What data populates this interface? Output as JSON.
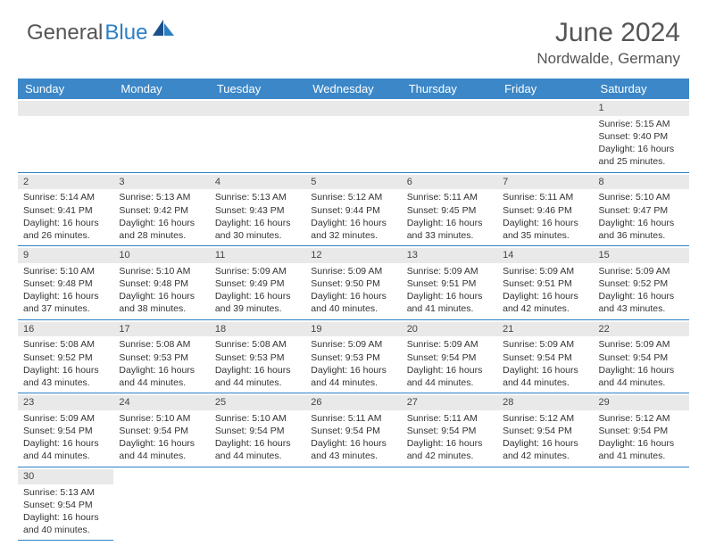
{
  "brand": {
    "word1": "General",
    "word2": "Blue"
  },
  "title": "June 2024",
  "location": "Nordwalde, Germany",
  "colors": {
    "header_bg": "#3b87c8",
    "header_text": "#ffffff",
    "rule": "#2d7fc4",
    "daynum_bg": "#e9e9e9",
    "text": "#333333",
    "brand_grey": "#555555",
    "brand_blue": "#2d7fc4"
  },
  "weekdays": [
    "Sunday",
    "Monday",
    "Tuesday",
    "Wednesday",
    "Thursday",
    "Friday",
    "Saturday"
  ],
  "first_weekday_index": 6,
  "days": [
    {
      "n": 1,
      "sunrise": "5:15 AM",
      "sunset": "9:40 PM",
      "daylight": "16 hours and 25 minutes."
    },
    {
      "n": 2,
      "sunrise": "5:14 AM",
      "sunset": "9:41 PM",
      "daylight": "16 hours and 26 minutes."
    },
    {
      "n": 3,
      "sunrise": "5:13 AM",
      "sunset": "9:42 PM",
      "daylight": "16 hours and 28 minutes."
    },
    {
      "n": 4,
      "sunrise": "5:13 AM",
      "sunset": "9:43 PM",
      "daylight": "16 hours and 30 minutes."
    },
    {
      "n": 5,
      "sunrise": "5:12 AM",
      "sunset": "9:44 PM",
      "daylight": "16 hours and 32 minutes."
    },
    {
      "n": 6,
      "sunrise": "5:11 AM",
      "sunset": "9:45 PM",
      "daylight": "16 hours and 33 minutes."
    },
    {
      "n": 7,
      "sunrise": "5:11 AM",
      "sunset": "9:46 PM",
      "daylight": "16 hours and 35 minutes."
    },
    {
      "n": 8,
      "sunrise": "5:10 AM",
      "sunset": "9:47 PM",
      "daylight": "16 hours and 36 minutes."
    },
    {
      "n": 9,
      "sunrise": "5:10 AM",
      "sunset": "9:48 PM",
      "daylight": "16 hours and 37 minutes."
    },
    {
      "n": 10,
      "sunrise": "5:10 AM",
      "sunset": "9:48 PM",
      "daylight": "16 hours and 38 minutes."
    },
    {
      "n": 11,
      "sunrise": "5:09 AM",
      "sunset": "9:49 PM",
      "daylight": "16 hours and 39 minutes."
    },
    {
      "n": 12,
      "sunrise": "5:09 AM",
      "sunset": "9:50 PM",
      "daylight": "16 hours and 40 minutes."
    },
    {
      "n": 13,
      "sunrise": "5:09 AM",
      "sunset": "9:51 PM",
      "daylight": "16 hours and 41 minutes."
    },
    {
      "n": 14,
      "sunrise": "5:09 AM",
      "sunset": "9:51 PM",
      "daylight": "16 hours and 42 minutes."
    },
    {
      "n": 15,
      "sunrise": "5:09 AM",
      "sunset": "9:52 PM",
      "daylight": "16 hours and 43 minutes."
    },
    {
      "n": 16,
      "sunrise": "5:08 AM",
      "sunset": "9:52 PM",
      "daylight": "16 hours and 43 minutes."
    },
    {
      "n": 17,
      "sunrise": "5:08 AM",
      "sunset": "9:53 PM",
      "daylight": "16 hours and 44 minutes."
    },
    {
      "n": 18,
      "sunrise": "5:08 AM",
      "sunset": "9:53 PM",
      "daylight": "16 hours and 44 minutes."
    },
    {
      "n": 19,
      "sunrise": "5:09 AM",
      "sunset": "9:53 PM",
      "daylight": "16 hours and 44 minutes."
    },
    {
      "n": 20,
      "sunrise": "5:09 AM",
      "sunset": "9:54 PM",
      "daylight": "16 hours and 44 minutes."
    },
    {
      "n": 21,
      "sunrise": "5:09 AM",
      "sunset": "9:54 PM",
      "daylight": "16 hours and 44 minutes."
    },
    {
      "n": 22,
      "sunrise": "5:09 AM",
      "sunset": "9:54 PM",
      "daylight": "16 hours and 44 minutes."
    },
    {
      "n": 23,
      "sunrise": "5:09 AM",
      "sunset": "9:54 PM",
      "daylight": "16 hours and 44 minutes."
    },
    {
      "n": 24,
      "sunrise": "5:10 AM",
      "sunset": "9:54 PM",
      "daylight": "16 hours and 44 minutes."
    },
    {
      "n": 25,
      "sunrise": "5:10 AM",
      "sunset": "9:54 PM",
      "daylight": "16 hours and 44 minutes."
    },
    {
      "n": 26,
      "sunrise": "5:11 AM",
      "sunset": "9:54 PM",
      "daylight": "16 hours and 43 minutes."
    },
    {
      "n": 27,
      "sunrise": "5:11 AM",
      "sunset": "9:54 PM",
      "daylight": "16 hours and 42 minutes."
    },
    {
      "n": 28,
      "sunrise": "5:12 AM",
      "sunset": "9:54 PM",
      "daylight": "16 hours and 42 minutes."
    },
    {
      "n": 29,
      "sunrise": "5:12 AM",
      "sunset": "9:54 PM",
      "daylight": "16 hours and 41 minutes."
    },
    {
      "n": 30,
      "sunrise": "5:13 AM",
      "sunset": "9:54 PM",
      "daylight": "16 hours and 40 minutes."
    }
  ],
  "labels": {
    "sunrise": "Sunrise:",
    "sunset": "Sunset:",
    "daylight": "Daylight:"
  }
}
